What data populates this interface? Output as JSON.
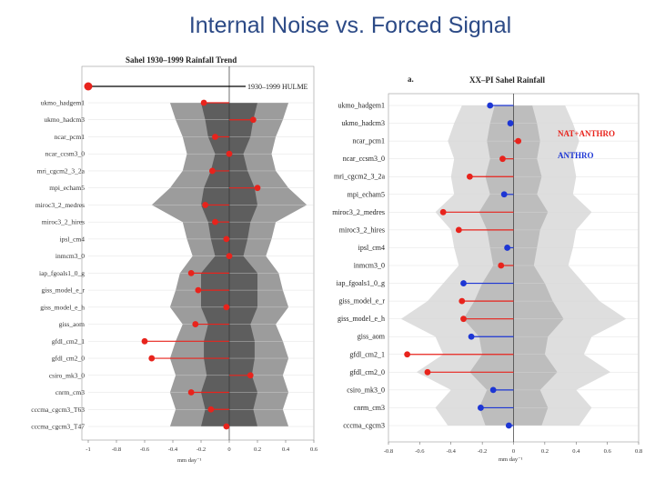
{
  "slide": {
    "title": "Internal Noise vs. Forced Signal"
  },
  "chart_data": [
    {
      "type": "dot-stem",
      "title": "Sahel 1930–1999 Rainfall Trend",
      "xlabel": "mm day⁻¹",
      "xlim": [
        -1,
        0.6
      ],
      "xticks": [
        "-1",
        "-0.8",
        "-0.6",
        "-0.4",
        "-0.2",
        "0",
        "0.2",
        "0.4",
        "0.6"
      ],
      "observed": {
        "name": "1930–1999 HULME",
        "value": -1.0
      },
      "models": [
        "ukmo_hadgem1",
        "ukmo_hadcm3",
        "ncar_pcm1",
        "ncar_ccsm3_0",
        "mri_cgcm2_3_2a",
        "mpi_echam5",
        "miroc3_2_medres",
        "miroc3_2_hires",
        "ipsl_cm4",
        "inmcm3_0",
        "iap_fgoals1_0_g",
        "giss_model_e_r",
        "giss_model_e_h",
        "giss_aom",
        "gfdl_cm2_1",
        "gfdl_cm2_0",
        "csiro_mk3_0",
        "cnrm_cm3",
        "cccma_cgcm3_T63",
        "cccma_cgcm3_T47"
      ],
      "values": [
        -0.18,
        0.17,
        -0.1,
        0.0,
        -0.12,
        0.2,
        -0.17,
        -0.1,
        -0.02,
        0.0,
        -0.27,
        -0.22,
        -0.02,
        -0.24,
        -0.6,
        -0.55,
        0.15,
        -0.27,
        -0.13,
        -0.02
      ],
      "noise_outer": [
        0.42,
        0.38,
        0.33,
        0.3,
        0.33,
        0.42,
        0.55,
        0.33,
        0.3,
        0.26,
        0.35,
        0.38,
        0.42,
        0.33,
        0.38,
        0.42,
        0.38,
        0.42,
        0.38,
        0.42
      ],
      "noise_inner": [
        0.2,
        0.17,
        0.15,
        0.1,
        0.13,
        0.18,
        0.2,
        0.15,
        0.13,
        0.1,
        0.2,
        0.2,
        0.2,
        0.15,
        0.18,
        0.18,
        0.16,
        0.2,
        0.17,
        0.2
      ],
      "colors": {
        "dot": "#e8231c",
        "outer": "#9c9c9c",
        "inner": "#5e5e5e"
      }
    },
    {
      "type": "dot-stem",
      "title": "XX–PI Sahel Rainfall",
      "panel_letter": "a.",
      "xlabel": "mm day⁻¹",
      "xlim": [
        -0.8,
        0.8
      ],
      "xticks": [
        "-0.8",
        "-0.6",
        "-0.4",
        "-0.2",
        "0",
        "0.2",
        "0.4",
        "0.6",
        "0.8"
      ],
      "legend": [
        {
          "label": "NAT+ANTHRO",
          "color": "#e8231c"
        },
        {
          "label": "ANTHRO",
          "color": "#1d36d4"
        }
      ],
      "models": [
        "ukmo_hadgem1",
        "ukmo_hadcm3",
        "ncar_pcm1",
        "ncar_ccsm3_0",
        "mri_cgcm2_3_2a",
        "mpi_echam5",
        "miroc3_2_medres",
        "miroc3_2_hires",
        "ipsl_cm4",
        "inmcm3_0",
        "iap_fgoals1_0_g",
        "giss_model_e_r",
        "giss_model_e_h",
        "giss_aom",
        "gfdl_cm2_1",
        "gfdl_cm2_0",
        "csiro_mk3_0",
        "cnrm_cm3",
        "cccma_cgcm3"
      ],
      "values": [
        -0.15,
        -0.02,
        0.03,
        -0.07,
        -0.28,
        -0.06,
        -0.45,
        -0.35,
        -0.04,
        -0.08,
        -0.32,
        -0.33,
        -0.32,
        -0.27,
        -0.68,
        -0.55,
        -0.13,
        -0.21,
        -0.03
      ],
      "forcing": [
        "ANTHRO",
        "ANTHRO",
        "NAT+ANTHRO",
        "NAT+ANTHRO",
        "NAT+ANTHRO",
        "ANTHRO",
        "NAT+ANTHRO",
        "NAT+ANTHRO",
        "ANTHRO",
        "NAT+ANTHRO",
        "ANTHRO",
        "NAT+ANTHRO",
        "NAT+ANTHRO",
        "ANTHRO",
        "NAT+ANTHRO",
        "NAT+ANTHRO",
        "ANTHRO",
        "ANTHRO",
        "ANTHRO"
      ],
      "noise_outer": [
        0.33,
        0.38,
        0.42,
        0.38,
        0.4,
        0.38,
        0.5,
        0.4,
        0.38,
        0.35,
        0.45,
        0.55,
        0.72,
        0.5,
        0.45,
        0.62,
        0.4,
        0.5,
        0.42
      ],
      "noise_inner": [
        0.12,
        0.15,
        0.17,
        0.15,
        0.18,
        0.15,
        0.22,
        0.17,
        0.15,
        0.13,
        0.2,
        0.25,
        0.32,
        0.22,
        0.2,
        0.28,
        0.17,
        0.22,
        0.18
      ],
      "colors": {
        "nat_anthro": "#e8231c",
        "anthro": "#1d36d4",
        "outer": "#dedede",
        "inner": "#bdbdbd"
      }
    }
  ]
}
